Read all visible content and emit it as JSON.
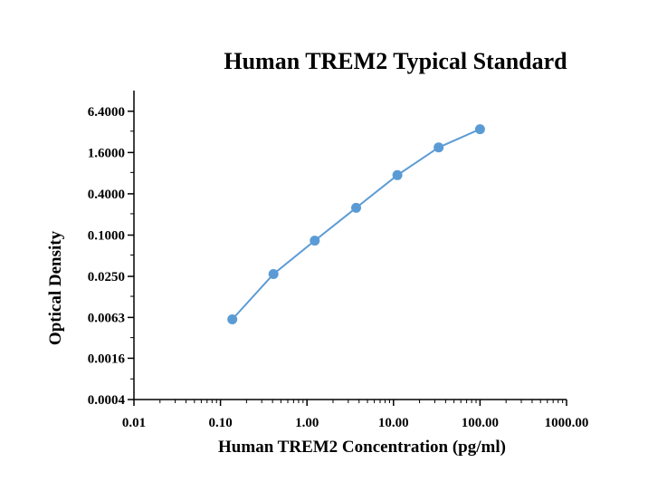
{
  "chart_data": {
    "type": "line",
    "title": "Human TREM2 Typical Standard",
    "xlabel": "Human TREM2 Concentration (pg/ml)",
    "ylabel": "Optical Density",
    "x_scale": "log10",
    "y_scale": "log2",
    "xlim": [
      0.01,
      1000
    ],
    "ylim": [
      0.0004,
      12.8
    ],
    "x_ticks": [
      0.01,
      0.1,
      1,
      10,
      100,
      1000
    ],
    "x_tick_labels": [
      "0.01",
      "0.10",
      "1.00",
      "10.00",
      "100.00",
      "1000.00"
    ],
    "y_ticks": [
      0.0004,
      0.0016,
      0.0063,
      0.025,
      0.1,
      0.4,
      1.6,
      6.4
    ],
    "y_tick_labels": [
      "0.0004",
      "0.0016",
      "0.0063",
      "0.0250",
      "0.1000",
      "0.4000",
      "1.6000",
      "6.4000"
    ],
    "grid": false,
    "legend": "none",
    "series": [
      {
        "color": "#5b9bd5",
        "x": [
          0.137,
          0.41,
          1.23,
          3.7,
          11.1,
          33.3,
          100
        ],
        "y": [
          0.0059,
          0.027,
          0.083,
          0.25,
          0.75,
          1.9,
          3.5
        ]
      }
    ]
  }
}
